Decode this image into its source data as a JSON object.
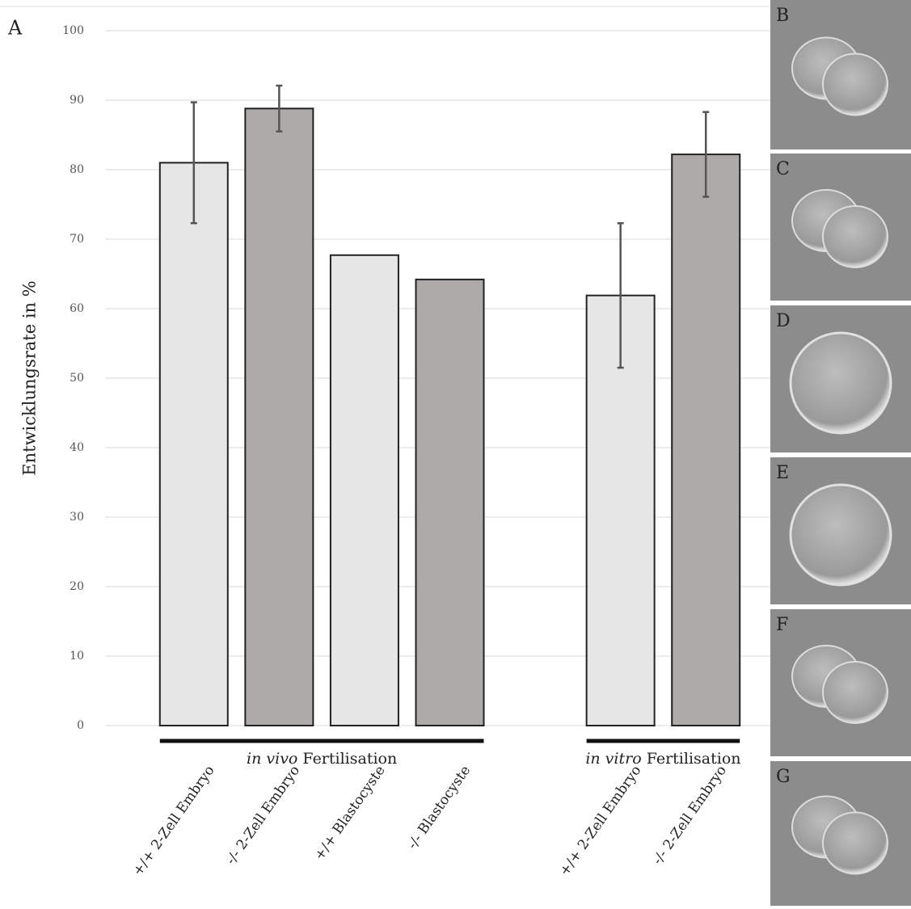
{
  "chart_data": {
    "type": "bar",
    "panel_label": "A",
    "ylabel": "Entwicklungsrate in %",
    "categories": [
      "+/+ 2-Zell Embryo",
      "-/- 2-Zell Embryo",
      "+/+ Blastocyste",
      "-/- Blastocyste",
      null,
      "+/+ 2-Zell Embryo",
      "-/- 2-Zell Embryo"
    ],
    "values": [
      81,
      88.8,
      67.7,
      64.2,
      null,
      61.9,
      82.2
    ],
    "errors": [
      8.7,
      3.3,
      null,
      null,
      null,
      10.4,
      6.1
    ],
    "colors": [
      "#e6e6e6",
      "#aeaaaa",
      "#e6e6e6",
      "#aeaaaa",
      null,
      "#e6e6e6",
      "#aeaaaa"
    ],
    "groups": [
      {
        "italic": "in vivo",
        "text": "Fertilisation"
      },
      {
        "italic": "in vitro",
        "text": "Fertilisation"
      }
    ],
    "ylim": [
      0,
      100
    ],
    "yticks": [
      0,
      10,
      20,
      30,
      40,
      50,
      60,
      70,
      80,
      90,
      100
    ],
    "grid": true
  },
  "image_panels": [
    "B",
    "C",
    "D",
    "E",
    "F",
    "G"
  ]
}
